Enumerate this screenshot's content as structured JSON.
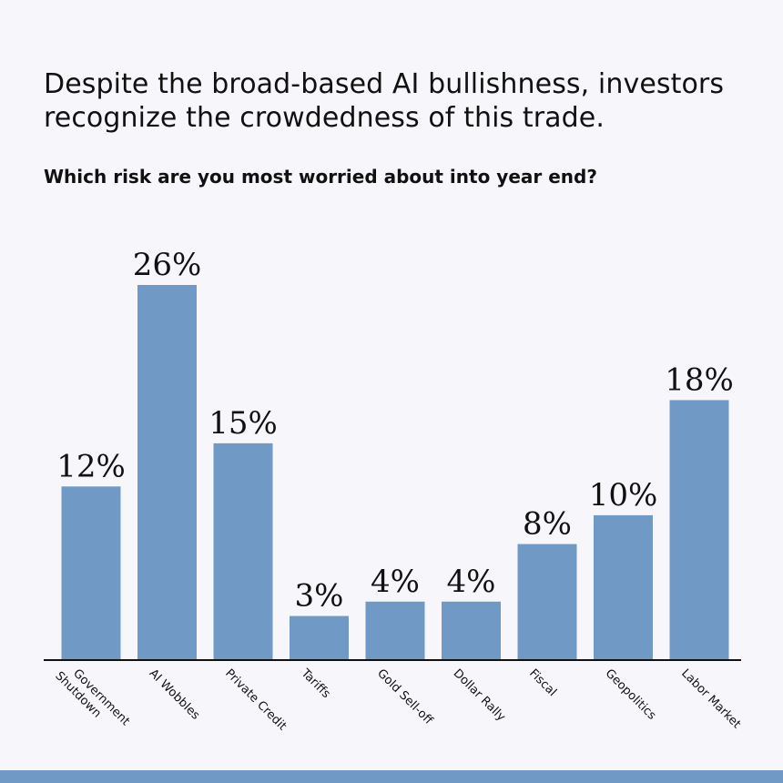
{
  "header": {
    "headline_line1": "Despite the broad-based AI bullishness, investors",
    "headline_line2": "recognize the crowdedness of this trade.",
    "question": "Which risk are you most worried about into year end?"
  },
  "colors": {
    "bar": "#7199c6",
    "axis": "#111111",
    "background": "#f7f7fb",
    "footer": "#7199c6"
  },
  "chart_data": {
    "type": "bar",
    "title": "Which risk are you most worried about into year end?",
    "categories": [
      "Government Shutdown",
      "AI Wobbles",
      "Private Credit",
      "Tariffs",
      "Gold Sell-off",
      "Dollar Rally",
      "Fiscal",
      "Geopolitics",
      "Labor Market"
    ],
    "category_label_lines": [
      [
        "Government",
        "Shutdown"
      ],
      [
        "AI Wobbles"
      ],
      [
        "Private Credit"
      ],
      [
        "Tariffs"
      ],
      [
        "Gold Sell-off"
      ],
      [
        "Dollar Rally"
      ],
      [
        "Fiscal"
      ],
      [
        "Geopolitics"
      ],
      [
        "Labor Market"
      ]
    ],
    "values": [
      12,
      26,
      15,
      3,
      4,
      4,
      8,
      10,
      18
    ],
    "value_labels": [
      "12%",
      "26%",
      "15%",
      "3%",
      "4%",
      "4%",
      "8%",
      "10%",
      "18%"
    ],
    "ylim": [
      0,
      26
    ],
    "unit": "%",
    "grid": false,
    "legend": "none",
    "xlabel": "",
    "ylabel": ""
  }
}
